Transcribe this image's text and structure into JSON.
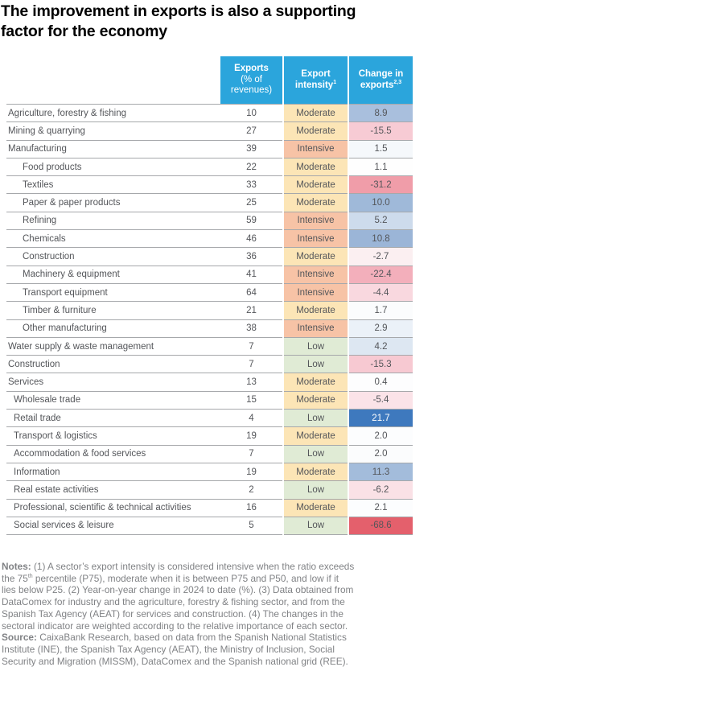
{
  "title_lines": [
    "The improvement in exports is also a supporting",
    "factor for the economy"
  ],
  "header": {
    "exports_line1": "Exports",
    "exports_line2": "(% of",
    "exports_line3": "revenues)",
    "intensity_label": "Export intensity",
    "intensity_sup": "1",
    "change_label": "Change in exports",
    "change_sup": "2,3"
  },
  "colors": {
    "header_bg": "#2BA5DC",
    "row_border": "#A6A8AB",
    "body_text": "#54565A",
    "notes_text": "#808285",
    "title_text": "#000000"
  },
  "chart_data": {
    "type": "table",
    "title": "The improvement in exports is also a supporting factor for the economy",
    "columns": [
      "Sector",
      "Exports (% of revenues)",
      "Export intensity",
      "Change in exports"
    ],
    "intensity_colors": {
      "Moderate": "#FCE5B6",
      "Intensive": "#F7C3A6",
      "Low": "#E0EBD5"
    },
    "rows": [
      {
        "sector": "Agriculture, forestry & fishing",
        "indent": 0,
        "exports": 10,
        "intensity": "Moderate",
        "change": 8.9,
        "change_bg": "#A9BFDD"
      },
      {
        "sector": "Mining & quarrying",
        "indent": 0,
        "exports": 27,
        "intensity": "Moderate",
        "change": -15.5,
        "change_bg": "#F7CBD4"
      },
      {
        "sector": "Manufacturing",
        "indent": 0,
        "exports": 39,
        "intensity": "Intensive",
        "change": 1.5,
        "change_bg": "#F5F8FB"
      },
      {
        "sector": "Food products",
        "indent": 2,
        "exports": 22,
        "intensity": "Moderate",
        "change": 1.1,
        "change_bg": "#FEFEFE"
      },
      {
        "sector": "Textiles",
        "indent": 2,
        "exports": 33,
        "intensity": "Moderate",
        "change": -31.2,
        "change_bg": "#F09DA9"
      },
      {
        "sector": "Paper & paper products",
        "indent": 2,
        "exports": 25,
        "intensity": "Moderate",
        "change": 10.0,
        "change_bg": "#9FB9D9"
      },
      {
        "sector": "Refining",
        "indent": 2,
        "exports": 59,
        "intensity": "Intensive",
        "change": 5.2,
        "change_bg": "#CDDBEC"
      },
      {
        "sector": "Chemicals",
        "indent": 2,
        "exports": 46,
        "intensity": "Intensive",
        "change": 10.8,
        "change_bg": "#9BB5D7"
      },
      {
        "sector": "Construction",
        "indent": 2,
        "exports": 36,
        "intensity": "Moderate",
        "change": -2.7,
        "change_bg": "#FBEFF1"
      },
      {
        "sector": "Machinery & equipment",
        "indent": 2,
        "exports": 41,
        "intensity": "Intensive",
        "change": -22.4,
        "change_bg": "#F3AFBB"
      },
      {
        "sector": "Transport equipment",
        "indent": 2,
        "exports": 64,
        "intensity": "Intensive",
        "change": -4.4,
        "change_bg": "#F9D8DF"
      },
      {
        "sector": "Timber & furniture",
        "indent": 2,
        "exports": 21,
        "intensity": "Moderate",
        "change": 1.7,
        "change_bg": "#FBFCFD"
      },
      {
        "sector": "Other manufacturing",
        "indent": 2,
        "exports": 38,
        "intensity": "Intensive",
        "change": 2.9,
        "change_bg": "#EBF1F8"
      },
      {
        "sector": "Water supply & waste management",
        "indent": 0,
        "exports": 7,
        "intensity": "Low",
        "change": 4.2,
        "change_bg": "#DDE7F2"
      },
      {
        "sector": "Construction",
        "indent": 0,
        "exports": 7,
        "intensity": "Low",
        "change": -15.3,
        "change_bg": "#F7C9D2"
      },
      {
        "sector": "Services",
        "indent": 0,
        "exports": 13,
        "intensity": "Moderate",
        "change": 0.4,
        "change_bg": "#FDFDFE"
      },
      {
        "sector": "Wholesale trade",
        "indent": 1,
        "exports": 15,
        "intensity": "Moderate",
        "change": -5.4,
        "change_bg": "#FBE3E8"
      },
      {
        "sector": "Retail trade",
        "indent": 1,
        "exports": 4,
        "intensity": "Low",
        "change": 21.7,
        "change_bg": "#3E79BE",
        "change_fg": "#FFFFFF"
      },
      {
        "sector": "Transport & logistics",
        "indent": 1,
        "exports": 19,
        "intensity": "Moderate",
        "change": 2.0,
        "change_bg": "#FCFDFE"
      },
      {
        "sector": "Accommodation & food services",
        "indent": 1,
        "exports": 7,
        "intensity": "Low",
        "change": 2.0,
        "change_bg": "#FBFCFD"
      },
      {
        "sector": "Information",
        "indent": 1,
        "exports": 19,
        "intensity": "Moderate",
        "change": 11.3,
        "change_bg": "#A3BCDB"
      },
      {
        "sector": "Real estate activities",
        "indent": 1,
        "exports": 2,
        "intensity": "Low",
        "change": -6.2,
        "change_bg": "#FAE1E6"
      },
      {
        "sector": "Professional, scientific & technical activities",
        "indent": 1,
        "exports": 16,
        "intensity": "Moderate",
        "change": 2.1,
        "change_bg": "#FCFDFE"
      },
      {
        "sector": "Social services & leisure",
        "indent": 1,
        "exports": 5,
        "intensity": "Low",
        "change": -68.6,
        "change_bg": "#E4606C"
      }
    ]
  },
  "notes": {
    "lines": [
      [
        {
          "b": 1,
          "t": "Notes:"
        },
        {
          "t": " (1) A sector’s export intensity is considered intensive when the ratio exceeds"
        }
      ],
      [
        {
          "t": "the 75"
        },
        {
          "sup": 1,
          "t": "th"
        },
        {
          "t": " percentile (P75), moderate when it is between P75 and P50, and low if it"
        }
      ],
      [
        {
          "t": "lies below P25. (2) Year-on-year change in 2024 to date (%). (3) Data obtained from"
        }
      ],
      [
        {
          "t": "DataComex for industry and the agriculture, forestry & fishing sector, and from the"
        }
      ],
      [
        {
          "t": "Spanish Tax Agency (AEAT) for services and construction. (4) The changes in the"
        }
      ],
      [
        {
          "t": "sectoral indicator are weighted according to the relative importance of each sector."
        }
      ],
      [
        {
          "b": 1,
          "t": "Source:"
        },
        {
          "t": " CaixaBank Research, based on data from the Spanish National Statistics"
        }
      ],
      [
        {
          "t": "Institute (INE), the Spanish Tax Agency (AEAT), the Ministry of Inclusion, Social"
        }
      ],
      [
        {
          "t": "Security and Migration (MISSM), DataComex and the Spanish national grid (REE)."
        }
      ]
    ]
  }
}
